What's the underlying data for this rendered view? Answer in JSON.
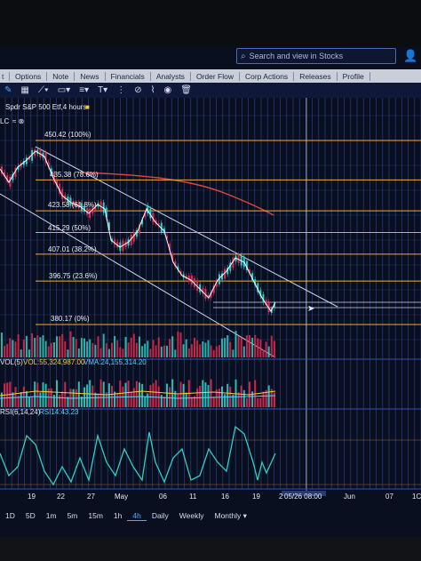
{
  "search": {
    "placeholder": "Search and view in Stocks"
  },
  "tabs": [
    {
      "label": "t"
    },
    {
      "label": "Options"
    },
    {
      "label": "Note"
    },
    {
      "label": "News"
    },
    {
      "label": "Financials"
    },
    {
      "label": "Analysts"
    },
    {
      "label": "Order Flow"
    },
    {
      "label": "Corp Actions"
    },
    {
      "label": "Releases"
    },
    {
      "label": "Profile"
    }
  ],
  "toolbar": {
    "icons": [
      "pencil-icon",
      "grid-icon",
      "line-tool-icon",
      "rectangle-tool-icon",
      "text-tool-icon",
      "pattern-tool-icon",
      "measure-tool-icon",
      "eye-icon",
      "trash-icon"
    ],
    "text_tool": "T"
  },
  "chart": {
    "symbol": "Spdr S&P 500 Etf,4 hours",
    "chart_type_label": "LC",
    "fib_levels": [
      {
        "label": "450.42 (100%)",
        "price": 450.42
      },
      {
        "label": "435.38 (78.6%)",
        "price": 435.38
      },
      {
        "label": "423.58 (61.8%)",
        "price": 423.58
      },
      {
        "label": "415.29 (50%)",
        "price": 415.29
      },
      {
        "label": "407.01 (38.2%)",
        "price": 407.01
      },
      {
        "label": "396.75 (23.6%)",
        "price": 396.75
      },
      {
        "label": "380.17 (0%)",
        "price": 380.17
      }
    ],
    "volume_label": "VOL(5)",
    "volume_value": "VOL:55,324,987.00",
    "vma_value": "VMA:24,155,314.20",
    "rsi_label": "RSI(6,14,24)",
    "rsi_value": "RSI14:43.23",
    "x_ticks": [
      "19",
      "22",
      "27",
      "May",
      "06",
      "11",
      "16",
      "19",
      "2",
      "Jun",
      "07",
      "1C"
    ],
    "crosshair_date": "05/26 08:00"
  },
  "colors": {
    "fib_line": "#f2a93b",
    "up": "#2ad0c4",
    "down": "#e5284f",
    "background": "#0a0f1f",
    "grid": "#3450a8",
    "ma_line": "#d84a3a"
  },
  "timeframes": [
    {
      "label": "1D"
    },
    {
      "label": "5D"
    },
    {
      "label": "1m"
    },
    {
      "label": "5m"
    },
    {
      "label": "15m"
    },
    {
      "label": "1h"
    },
    {
      "label": "4h",
      "active": true
    },
    {
      "label": "Daily"
    },
    {
      "label": "Weekly"
    },
    {
      "label": "Monthly ▾"
    }
  ]
}
